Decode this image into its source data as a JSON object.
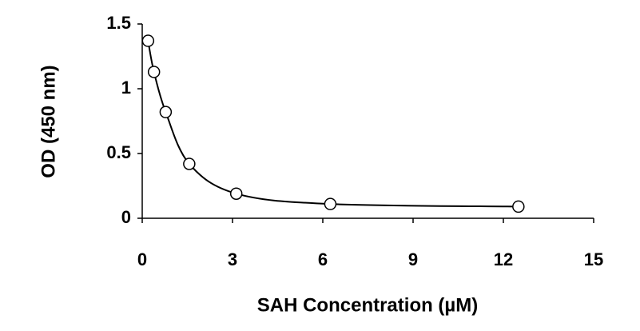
{
  "chart_data": {
    "type": "scatter",
    "x_label": "SAH Concentration (µM)",
    "y_label": "OD (450 nm)",
    "x": [
      0.195,
      0.39,
      0.78,
      1.5625,
      3.125,
      6.25,
      12.5
    ],
    "values": [
      1.37,
      1.13,
      0.82,
      0.42,
      0.19,
      0.11,
      0.09
    ],
    "color": "#ffffff",
    "line_color": "#000000",
    "xlim": [
      0,
      15
    ],
    "xticks": [
      0,
      3,
      6,
      9,
      12,
      15
    ],
    "ylim": [
      0,
      1.5
    ],
    "yticks": [
      0,
      0.5,
      1,
      1.5
    ]
  }
}
